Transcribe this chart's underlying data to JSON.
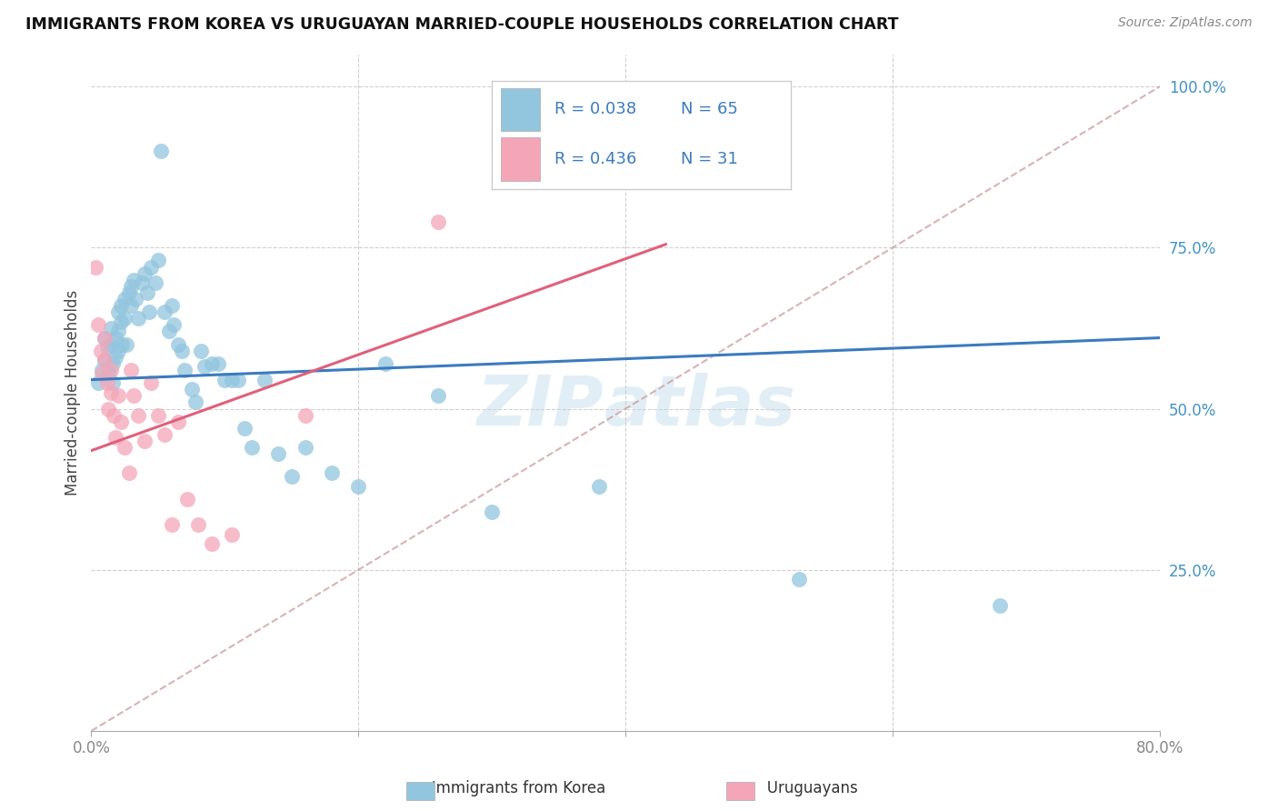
{
  "title": "IMMIGRANTS FROM KOREA VS URUGUAYAN MARRIED-COUPLE HOUSEHOLDS CORRELATION CHART",
  "source": "Source: ZipAtlas.com",
  "ylabel": "Married-couple Households",
  "xlim": [
    0,
    0.8
  ],
  "ylim": [
    0,
    1.05
  ],
  "legend_r1": "0.038",
  "legend_n1": "65",
  "legend_r2": "0.436",
  "legend_n2": "31",
  "color_blue": "#92c5de",
  "color_pink": "#f4a6b8",
  "color_blue_line": "#3a7bbf",
  "color_pink_line": "#e0607a",
  "color_dashed_line": "#d0a0a0",
  "korea_x": [
    0.005,
    0.008,
    0.01,
    0.01,
    0.012,
    0.013,
    0.015,
    0.015,
    0.016,
    0.016,
    0.018,
    0.018,
    0.02,
    0.02,
    0.02,
    0.022,
    0.022,
    0.023,
    0.025,
    0.025,
    0.026,
    0.028,
    0.03,
    0.03,
    0.032,
    0.033,
    0.035,
    0.038,
    0.04,
    0.042,
    0.043,
    0.045,
    0.048,
    0.05,
    0.052,
    0.055,
    0.058,
    0.06,
    0.062,
    0.065,
    0.068,
    0.07,
    0.075,
    0.078,
    0.082,
    0.085,
    0.09,
    0.095,
    0.1,
    0.105,
    0.11,
    0.115,
    0.12,
    0.13,
    0.14,
    0.15,
    0.16,
    0.18,
    0.2,
    0.22,
    0.26,
    0.3,
    0.38,
    0.53,
    0.68
  ],
  "korea_y": [
    0.54,
    0.56,
    0.61,
    0.575,
    0.595,
    0.555,
    0.625,
    0.6,
    0.57,
    0.54,
    0.61,
    0.58,
    0.65,
    0.62,
    0.59,
    0.66,
    0.635,
    0.6,
    0.67,
    0.64,
    0.6,
    0.68,
    0.69,
    0.66,
    0.7,
    0.67,
    0.64,
    0.695,
    0.71,
    0.68,
    0.65,
    0.72,
    0.695,
    0.73,
    0.9,
    0.65,
    0.62,
    0.66,
    0.63,
    0.6,
    0.59,
    0.56,
    0.53,
    0.51,
    0.59,
    0.565,
    0.57,
    0.57,
    0.545,
    0.545,
    0.545,
    0.47,
    0.44,
    0.545,
    0.43,
    0.395,
    0.44,
    0.4,
    0.38,
    0.57,
    0.52,
    0.34,
    0.38,
    0.235,
    0.195
  ],
  "uruguay_x": [
    0.003,
    0.005,
    0.007,
    0.008,
    0.01,
    0.01,
    0.012,
    0.013,
    0.015,
    0.015,
    0.017,
    0.018,
    0.02,
    0.022,
    0.025,
    0.028,
    0.03,
    0.032,
    0.035,
    0.04,
    0.045,
    0.05,
    0.055,
    0.06,
    0.065,
    0.072,
    0.08,
    0.09,
    0.105,
    0.16,
    0.26
  ],
  "uruguay_y": [
    0.72,
    0.63,
    0.59,
    0.555,
    0.61,
    0.575,
    0.54,
    0.5,
    0.56,
    0.525,
    0.49,
    0.455,
    0.52,
    0.48,
    0.44,
    0.4,
    0.56,
    0.52,
    0.49,
    0.45,
    0.54,
    0.49,
    0.46,
    0.32,
    0.48,
    0.36,
    0.32,
    0.29,
    0.305,
    0.49,
    0.79
  ],
  "watermark_zip": "ZIP",
  "watermark_atlas": "atlas",
  "bg_color": "#ffffff",
  "grid_color": "#d0d0d0"
}
